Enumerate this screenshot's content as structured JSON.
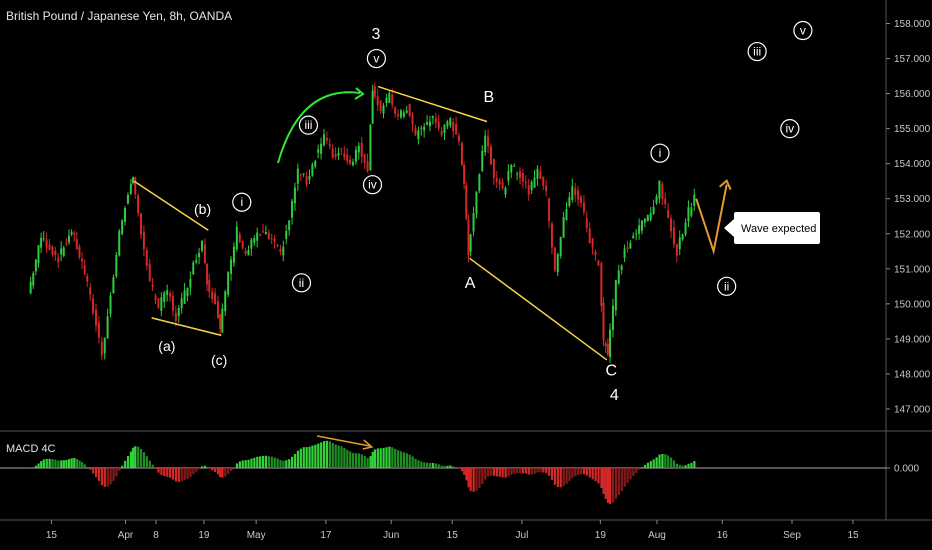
{
  "header": {
    "title": "British Pound / Japanese Yen, 8h, OANDA"
  },
  "colors": {
    "bull": "#2ecc40",
    "bear": "#d62828",
    "trend_line": "#f5d547",
    "arc": "#31e836",
    "projection": "#e69a2e",
    "macd_divergence": "#e69a2e",
    "background": "#000000"
  },
  "chart_data": {
    "type": "candlestick",
    "title": "British Pound / Japanese Yen, 8h, OANDA",
    "y_ticks": [
      "158.000",
      "157.000",
      "156.000",
      "155.000",
      "154.000",
      "153.000",
      "152.000",
      "151.000",
      "150.000",
      "149.000",
      "148.000",
      "147.000"
    ],
    "ylim": [
      146.4,
      158.5
    ],
    "x_ticks": [
      "15",
      "Apr",
      "8",
      "19",
      "May",
      "17",
      "Jun",
      "15",
      "Jul",
      "19",
      "Aug",
      "16",
      "Sep",
      "15"
    ],
    "price_path": [
      {
        "d": "Mar 10",
        "p": 150.3
      },
      {
        "d": "Mar 13",
        "p": 151.9
      },
      {
        "d": "Mar 17",
        "p": 151.3
      },
      {
        "d": "Mar 20",
        "p": 152.1
      },
      {
        "d": "Mar 23",
        "p": 150.9
      },
      {
        "d": "Mar 25",
        "p": 149.8
      },
      {
        "d": "Mar 27",
        "p": 148.6
      },
      {
        "d": "Mar 29",
        "p": 150.2
      },
      {
        "d": "Mar 31",
        "p": 152.0
      },
      {
        "d": "Apr 2",
        "p": 153.2
      },
      {
        "d": "Apr 3",
        "p": 153.5
      },
      {
        "d": "Apr 5",
        "p": 152.1
      },
      {
        "d": "Apr 7",
        "p": 150.6
      },
      {
        "d": "Apr 9",
        "p": 149.9
      },
      {
        "d": "Apr 11",
        "p": 150.4
      },
      {
        "d": "Apr 13",
        "p": 149.6
      },
      {
        "d": "Apr 15",
        "p": 150.3
      },
      {
        "d": "Apr 17",
        "p": 151.1
      },
      {
        "d": "Apr 19",
        "p": 151.8
      },
      {
        "d": "Apr 20",
        "p": 150.6
      },
      {
        "d": "Apr 22",
        "p": 150.1
      },
      {
        "d": "Apr 23",
        "p": 149.3
      },
      {
        "d": "Apr 25",
        "p": 150.8
      },
      {
        "d": "Apr 27",
        "p": 152.1
      },
      {
        "d": "Apr 29",
        "p": 151.4
      },
      {
        "d": "May 1",
        "p": 151.9
      },
      {
        "d": "May 3",
        "p": 152.0
      },
      {
        "d": "May 5",
        "p": 151.8
      },
      {
        "d": "May 7",
        "p": 151.4
      },
      {
        "d": "May 9",
        "p": 152.4
      },
      {
        "d": "May 11",
        "p": 153.8
      },
      {
        "d": "May 13",
        "p": 153.5
      },
      {
        "d": "May 15",
        "p": 154.2
      },
      {
        "d": "May 17",
        "p": 154.8
      },
      {
        "d": "May 19",
        "p": 154.2
      },
      {
        "d": "May 21",
        "p": 154.4
      },
      {
        "d": "May 23",
        "p": 154.0
      },
      {
        "d": "May 25",
        "p": 154.5
      },
      {
        "d": "May 27",
        "p": 153.9
      },
      {
        "d": "May 28",
        "p": 156.2
      },
      {
        "d": "May 30",
        "p": 155.5
      },
      {
        "d": "Jun 1",
        "p": 155.9
      },
      {
        "d": "Jun 3",
        "p": 155.3
      },
      {
        "d": "Jun 5",
        "p": 155.6
      },
      {
        "d": "Jun 7",
        "p": 154.8
      },
      {
        "d": "Jun 9",
        "p": 155.1
      },
      {
        "d": "Jun 11",
        "p": 155.3
      },
      {
        "d": "Jun 13",
        "p": 154.9
      },
      {
        "d": "Jun 15",
        "p": 155.2
      },
      {
        "d": "Jun 17",
        "p": 154.7
      },
      {
        "d": "Jun 18",
        "p": 153.3
      },
      {
        "d": "Jun 19",
        "p": 151.5
      },
      {
        "d": "Jun 21",
        "p": 153.2
      },
      {
        "d": "Jun 23",
        "p": 154.9
      },
      {
        "d": "Jun 25",
        "p": 153.7
      },
      {
        "d": "Jun 27",
        "p": 153.2
      },
      {
        "d": "Jun 29",
        "p": 153.9
      },
      {
        "d": "Jul 1",
        "p": 153.7
      },
      {
        "d": "Jul 3",
        "p": 153.2
      },
      {
        "d": "Jul 5",
        "p": 153.9
      },
      {
        "d": "Jul 7",
        "p": 153.1
      },
      {
        "d": "Jul 9",
        "p": 151.0
      },
      {
        "d": "Jul 11",
        "p": 152.4
      },
      {
        "d": "Jul 13",
        "p": 153.3
      },
      {
        "d": "Jul 15",
        "p": 152.9
      },
      {
        "d": "Jul 17",
        "p": 151.8
      },
      {
        "d": "Jul 19",
        "p": 151.1
      },
      {
        "d": "Jul 20",
        "p": 149.0
      },
      {
        "d": "Jul 21",
        "p": 148.6
      },
      {
        "d": "Jul 23",
        "p": 150.6
      },
      {
        "d": "Jul 25",
        "p": 151.5
      },
      {
        "d": "Jul 27",
        "p": 151.9
      },
      {
        "d": "Jul 29",
        "p": 152.3
      },
      {
        "d": "Jul 31",
        "p": 152.6
      },
      {
        "d": "Aug 2",
        "p": 153.4
      },
      {
        "d": "Aug 4",
        "p": 152.4
      },
      {
        "d": "Aug 6",
        "p": 151.5
      },
      {
        "d": "Aug 8",
        "p": 152.4
      },
      {
        "d": "Aug 10",
        "p": 153.1
      }
    ],
    "wave_labels": [
      {
        "text": "3",
        "d": "May 28.5",
        "p": 157.7,
        "circled": false
      },
      {
        "text": "v",
        "d": "May 28.6",
        "p": 157.0,
        "circled": true
      },
      {
        "text": "iii",
        "d": "May 13",
        "p": 155.1,
        "circled": true
      },
      {
        "text": "iv",
        "d": "May 27.7",
        "p": 153.4,
        "circled": true
      },
      {
        "text": "i",
        "d": "Apr 27.7",
        "p": 152.9,
        "circled": true
      },
      {
        "text": "ii",
        "d": "May 11.4",
        "p": 150.6,
        "circled": true
      },
      {
        "text": "(a)",
        "d": "Apr 10.5",
        "p": 148.8,
        "circled": false
      },
      {
        "text": "(b)",
        "d": "Apr 18.7",
        "p": 152.7,
        "circled": false
      },
      {
        "text": "(c)",
        "d": "Apr 22.5",
        "p": 148.4,
        "circled": false
      },
      {
        "text": "B",
        "d": "Jun 23.4",
        "p": 155.9,
        "circled": false
      },
      {
        "text": "A",
        "d": "Jun 19.1",
        "p": 150.6,
        "circled": false
      },
      {
        "text": "C",
        "d": "Jul 21.5",
        "p": 148.1,
        "circled": false
      },
      {
        "text": "4",
        "d": "Jul 22.2",
        "p": 147.4,
        "circled": false
      },
      {
        "text": "i",
        "d": "Aug 1.7",
        "p": 154.3,
        "circled": true
      },
      {
        "text": "ii",
        "d": "Aug 17",
        "p": 150.5,
        "circled": true
      },
      {
        "text": "iii",
        "d": "Aug 24",
        "p": 157.2,
        "circled": true
      },
      {
        "text": "iv",
        "d": "Aug 31.5",
        "p": 155.0,
        "circled": true
      },
      {
        "text": "v",
        "d": "Sep 3.5",
        "p": 157.8,
        "circled": true
      }
    ],
    "trend_lines": [
      {
        "from": {
          "d": "Apr 3",
          "p": 153.5
        },
        "to": {
          "d": "Apr 20",
          "p": 152.1
        }
      },
      {
        "from": {
          "d": "Apr 7",
          "p": 149.6
        },
        "to": {
          "d": "Apr 23",
          "p": 149.1
        }
      },
      {
        "from": {
          "d": "May 29",
          "p": 156.2
        },
        "to": {
          "d": "Jun 23",
          "p": 155.2
        }
      },
      {
        "from": {
          "d": "Jun 19",
          "p": 151.3
        },
        "to": {
          "d": "Jul 20.5",
          "p": 148.4
        }
      }
    ],
    "projection": [
      {
        "d": "Aug 10",
        "p": 153.0
      },
      {
        "d": "Aug 14",
        "p": 151.5
      },
      {
        "d": "Aug 17",
        "p": 153.4
      }
    ],
    "callout": "Wave expected",
    "indicator": {
      "name": "MACD 4C",
      "zero_label": "0.000",
      "divergence": {
        "from": "May 15",
        "to": "May 28"
      }
    }
  }
}
